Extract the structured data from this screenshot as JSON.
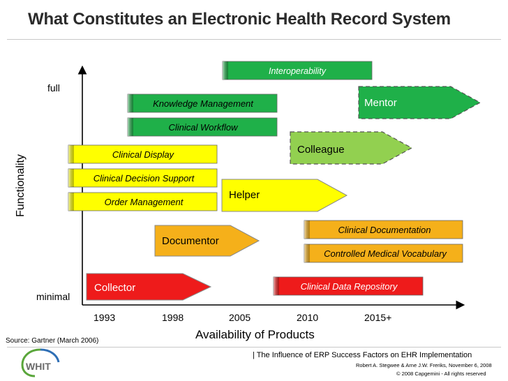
{
  "title": "What Constitutes an Electronic Health Record System",
  "y_axis": {
    "label": "Functionality",
    "top_label": "full",
    "bottom_label": "minimal"
  },
  "x_axis": {
    "label": "Availability of Products",
    "ticks": [
      "1993",
      "1998",
      "2005",
      "2010",
      "2015+"
    ]
  },
  "source": "Source: Gartner (March 2006)",
  "footer": {
    "title": "| The Influence of ERP Success Factors on EHR Implementation",
    "authors": "Robert A. Stegwee & Arne J.W. Freriks, November 6, 2008",
    "copyright": "© 2008 Capgemini - All rights reserved",
    "logo_text": "WHIT"
  },
  "colors": {
    "red": "#ee1b1b",
    "orange": "#f5b01a",
    "yellow": "#ffff00",
    "green": "#1fb049",
    "light_green": "#92d050"
  },
  "stages": [
    {
      "label": "Collector",
      "color": "red"
    },
    {
      "label": "Documentor",
      "color": "orange"
    },
    {
      "label": "Helper",
      "color": "yellow"
    },
    {
      "label": "Colleague",
      "color": "light_green"
    },
    {
      "label": "Mentor",
      "color": "green"
    }
  ],
  "capabilities": [
    {
      "label": "Interoperability",
      "color": "green"
    },
    {
      "label": "Knowledge Management",
      "color": "green"
    },
    {
      "label": "Clinical Workflow",
      "color": "green"
    },
    {
      "label": "Clinical Display",
      "color": "yellow"
    },
    {
      "label": "Clinical Decision Support",
      "color": "yellow"
    },
    {
      "label": "Order Management",
      "color": "yellow"
    },
    {
      "label": "Clinical Documentation",
      "color": "orange"
    },
    {
      "label": "Controlled Medical Vocabulary",
      "color": "orange"
    },
    {
      "label": "Clinical Data Repository",
      "color": "red"
    }
  ]
}
